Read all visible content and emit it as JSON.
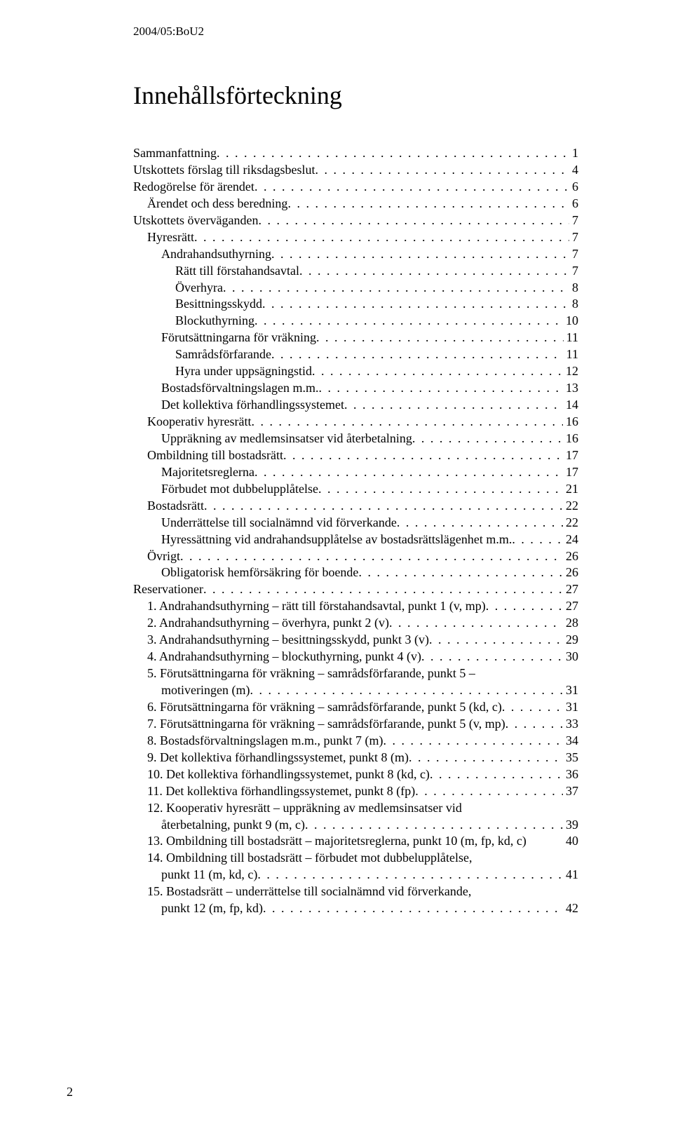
{
  "doc_id": "2004/05:BoU2",
  "title": "Innehållsförteckning",
  "page_number": "2",
  "toc": [
    {
      "label": "Sammanfattning",
      "page": "1",
      "indent": 0
    },
    {
      "label": "Utskottets förslag till riksdagsbeslut",
      "page": "4",
      "indent": 0
    },
    {
      "label": "Redogörelse för ärendet",
      "page": "6",
      "indent": 0
    },
    {
      "label": "Ärendet och dess beredning",
      "page": "6",
      "indent": 1
    },
    {
      "label": "Utskottets överväganden",
      "page": "7",
      "indent": 0
    },
    {
      "label": "Hyresrätt",
      "page": "7",
      "indent": 1
    },
    {
      "label": "Andrahandsuthyrning",
      "page": "7",
      "indent": 2
    },
    {
      "label": "Rätt till förstahandsavtal",
      "page": "7",
      "indent": 3
    },
    {
      "label": "Överhyra",
      "page": "8",
      "indent": 3
    },
    {
      "label": "Besittningsskydd",
      "page": "8",
      "indent": 3
    },
    {
      "label": "Blockuthyrning",
      "page": "10",
      "indent": 3
    },
    {
      "label": "Förutsättningarna för vräkning",
      "page": "11",
      "indent": 2
    },
    {
      "label": "Samrådsförfarande",
      "page": "11",
      "indent": 3
    },
    {
      "label": "Hyra under uppsägningstid",
      "page": "12",
      "indent": 3
    },
    {
      "label": "Bostadsförvaltningslagen m.m.",
      "page": "13",
      "indent": 2
    },
    {
      "label": "Det kollektiva förhandlingssystemet",
      "page": "14",
      "indent": 2
    },
    {
      "label": "Kooperativ hyresrätt",
      "page": "16",
      "indent": 1
    },
    {
      "label": "Uppräkning av medlemsinsatser vid återbetalning",
      "page": "16",
      "indent": 2
    },
    {
      "label": "Ombildning till bostadsrätt",
      "page": "17",
      "indent": 1
    },
    {
      "label": "Majoritetsreglerna",
      "page": "17",
      "indent": 2
    },
    {
      "label": "Förbudet mot dubbelupplåtelse",
      "page": "21",
      "indent": 2
    },
    {
      "label": "Bostadsrätt",
      "page": "22",
      "indent": 1
    },
    {
      "label": "Underrättelse till socialnämnd vid förverkande",
      "page": "22",
      "indent": 2
    },
    {
      "label": "Hyressättning vid andrahandsupplåtelse av bostadsrättslägenhet m.m.",
      "page": "24",
      "indent": 2
    },
    {
      "label": "Övrigt",
      "page": "26",
      "indent": 1
    },
    {
      "label": "Obligatorisk hemförsäkring för boende",
      "page": "26",
      "indent": 2
    },
    {
      "label": "Reservationer",
      "page": "27",
      "indent": 0
    },
    {
      "label": "1. Andrahandsuthyrning – rätt till förstahandsavtal, punkt 1 (v, mp)",
      "page": "27",
      "indent": 1
    },
    {
      "label": "2. Andrahandsuthyrning – överhyra, punkt 2 (v)",
      "page": "28",
      "indent": 1
    },
    {
      "label": "3. Andrahandsuthyrning – besittningsskydd, punkt 3 (v)",
      "page": "29",
      "indent": 1
    },
    {
      "label": "4. Andrahandsuthyrning – blockuthyrning, punkt 4 (v)",
      "page": "30",
      "indent": 1
    },
    {
      "label": "5. Förutsättningarna för vräkning – samrådsförfarande, punkt 5 – motiveringen (m)",
      "page": "31",
      "indent": 1,
      "wrap": true
    },
    {
      "label": "6. Förutsättningarna för vräkning – samrådsförfarande, punkt 5 (kd, c)",
      "page": "31",
      "indent": 1
    },
    {
      "label": "7. Förutsättningarna för vräkning – samrådsförfarande, punkt 5 (v, mp)",
      "page": "33",
      "indent": 1
    },
    {
      "label": "8. Bostadsförvaltningslagen m.m., punkt 7 (m)",
      "page": "34",
      "indent": 1
    },
    {
      "label": "9. Det kollektiva förhandlingssystemet, punkt 8 (m)",
      "page": "35",
      "indent": 1
    },
    {
      "label": "10. Det kollektiva förhandlingssystemet, punkt 8 (kd, c)",
      "page": "36",
      "indent": 1
    },
    {
      "label": "11. Det kollektiva förhandlingssystemet, punkt 8 (fp)",
      "page": "37",
      "indent": 1
    },
    {
      "label": "12. Kooperativ hyresrätt – uppräkning av medlemsinsatser vid återbetalning, punkt 9 (m, c)",
      "page": "39",
      "indent": 1,
      "wrap": true
    },
    {
      "label": "13. Ombildning till bostadsrätt – majoritetsreglerna, punkt 10 (m, fp, kd, c)",
      "page": "40",
      "indent": 1,
      "nodots": true
    },
    {
      "label": "14. Ombildning till bostadsrätt – förbudet mot dubbelupplåtelse, punkt 11 (m, kd, c)",
      "page": "41",
      "indent": 1,
      "wrap": true
    },
    {
      "label": "15. Bostadsrätt – underrättelse till socialnämnd vid förverkande, punkt 12 (m, fp, kd)",
      "page": "42",
      "indent": 1,
      "wrap": true
    }
  ]
}
